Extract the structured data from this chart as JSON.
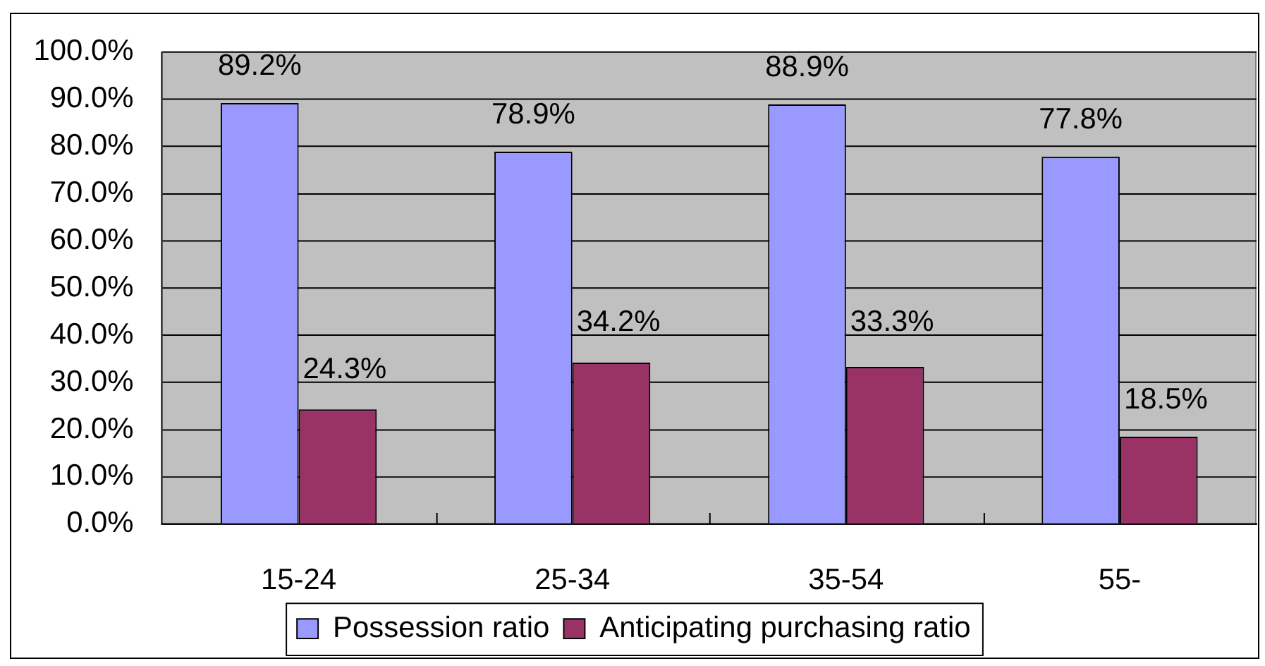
{
  "chart_data": {
    "type": "bar",
    "categories": [
      "15-24",
      "25-34",
      "35-54",
      "55-"
    ],
    "series": [
      {
        "name": "Possession ratio",
        "color": "#9999ff",
        "values": [
          89.2,
          78.9,
          88.9,
          77.8
        ],
        "value_labels": [
          "89.2%",
          "78.9%",
          "88.9%",
          "77.8%"
        ]
      },
      {
        "name": "Anticipating purchasing ratio",
        "color": "#993366",
        "values": [
          24.3,
          34.2,
          33.3,
          18.5
        ],
        "value_labels": [
          "24.3%",
          "34.2%",
          "33.3%",
          "18.5%"
        ]
      }
    ],
    "ylim": [
      0,
      100
    ],
    "yticks": [
      {
        "value": 0,
        "label": "0.0%"
      },
      {
        "value": 10,
        "label": "10.0%"
      },
      {
        "value": 20,
        "label": "20.0%"
      },
      {
        "value": 30,
        "label": "30.0%"
      },
      {
        "value": 40,
        "label": "40.0%"
      },
      {
        "value": 50,
        "label": "50.0%"
      },
      {
        "value": 60,
        "label": "60.0%"
      },
      {
        "value": 70,
        "label": "70.0%"
      },
      {
        "value": 80,
        "label": "80.0%"
      },
      {
        "value": 90,
        "label": "90.0%"
      },
      {
        "value": 100,
        "label": "100.0%"
      }
    ],
    "grid": "y",
    "legend": "bottom"
  }
}
